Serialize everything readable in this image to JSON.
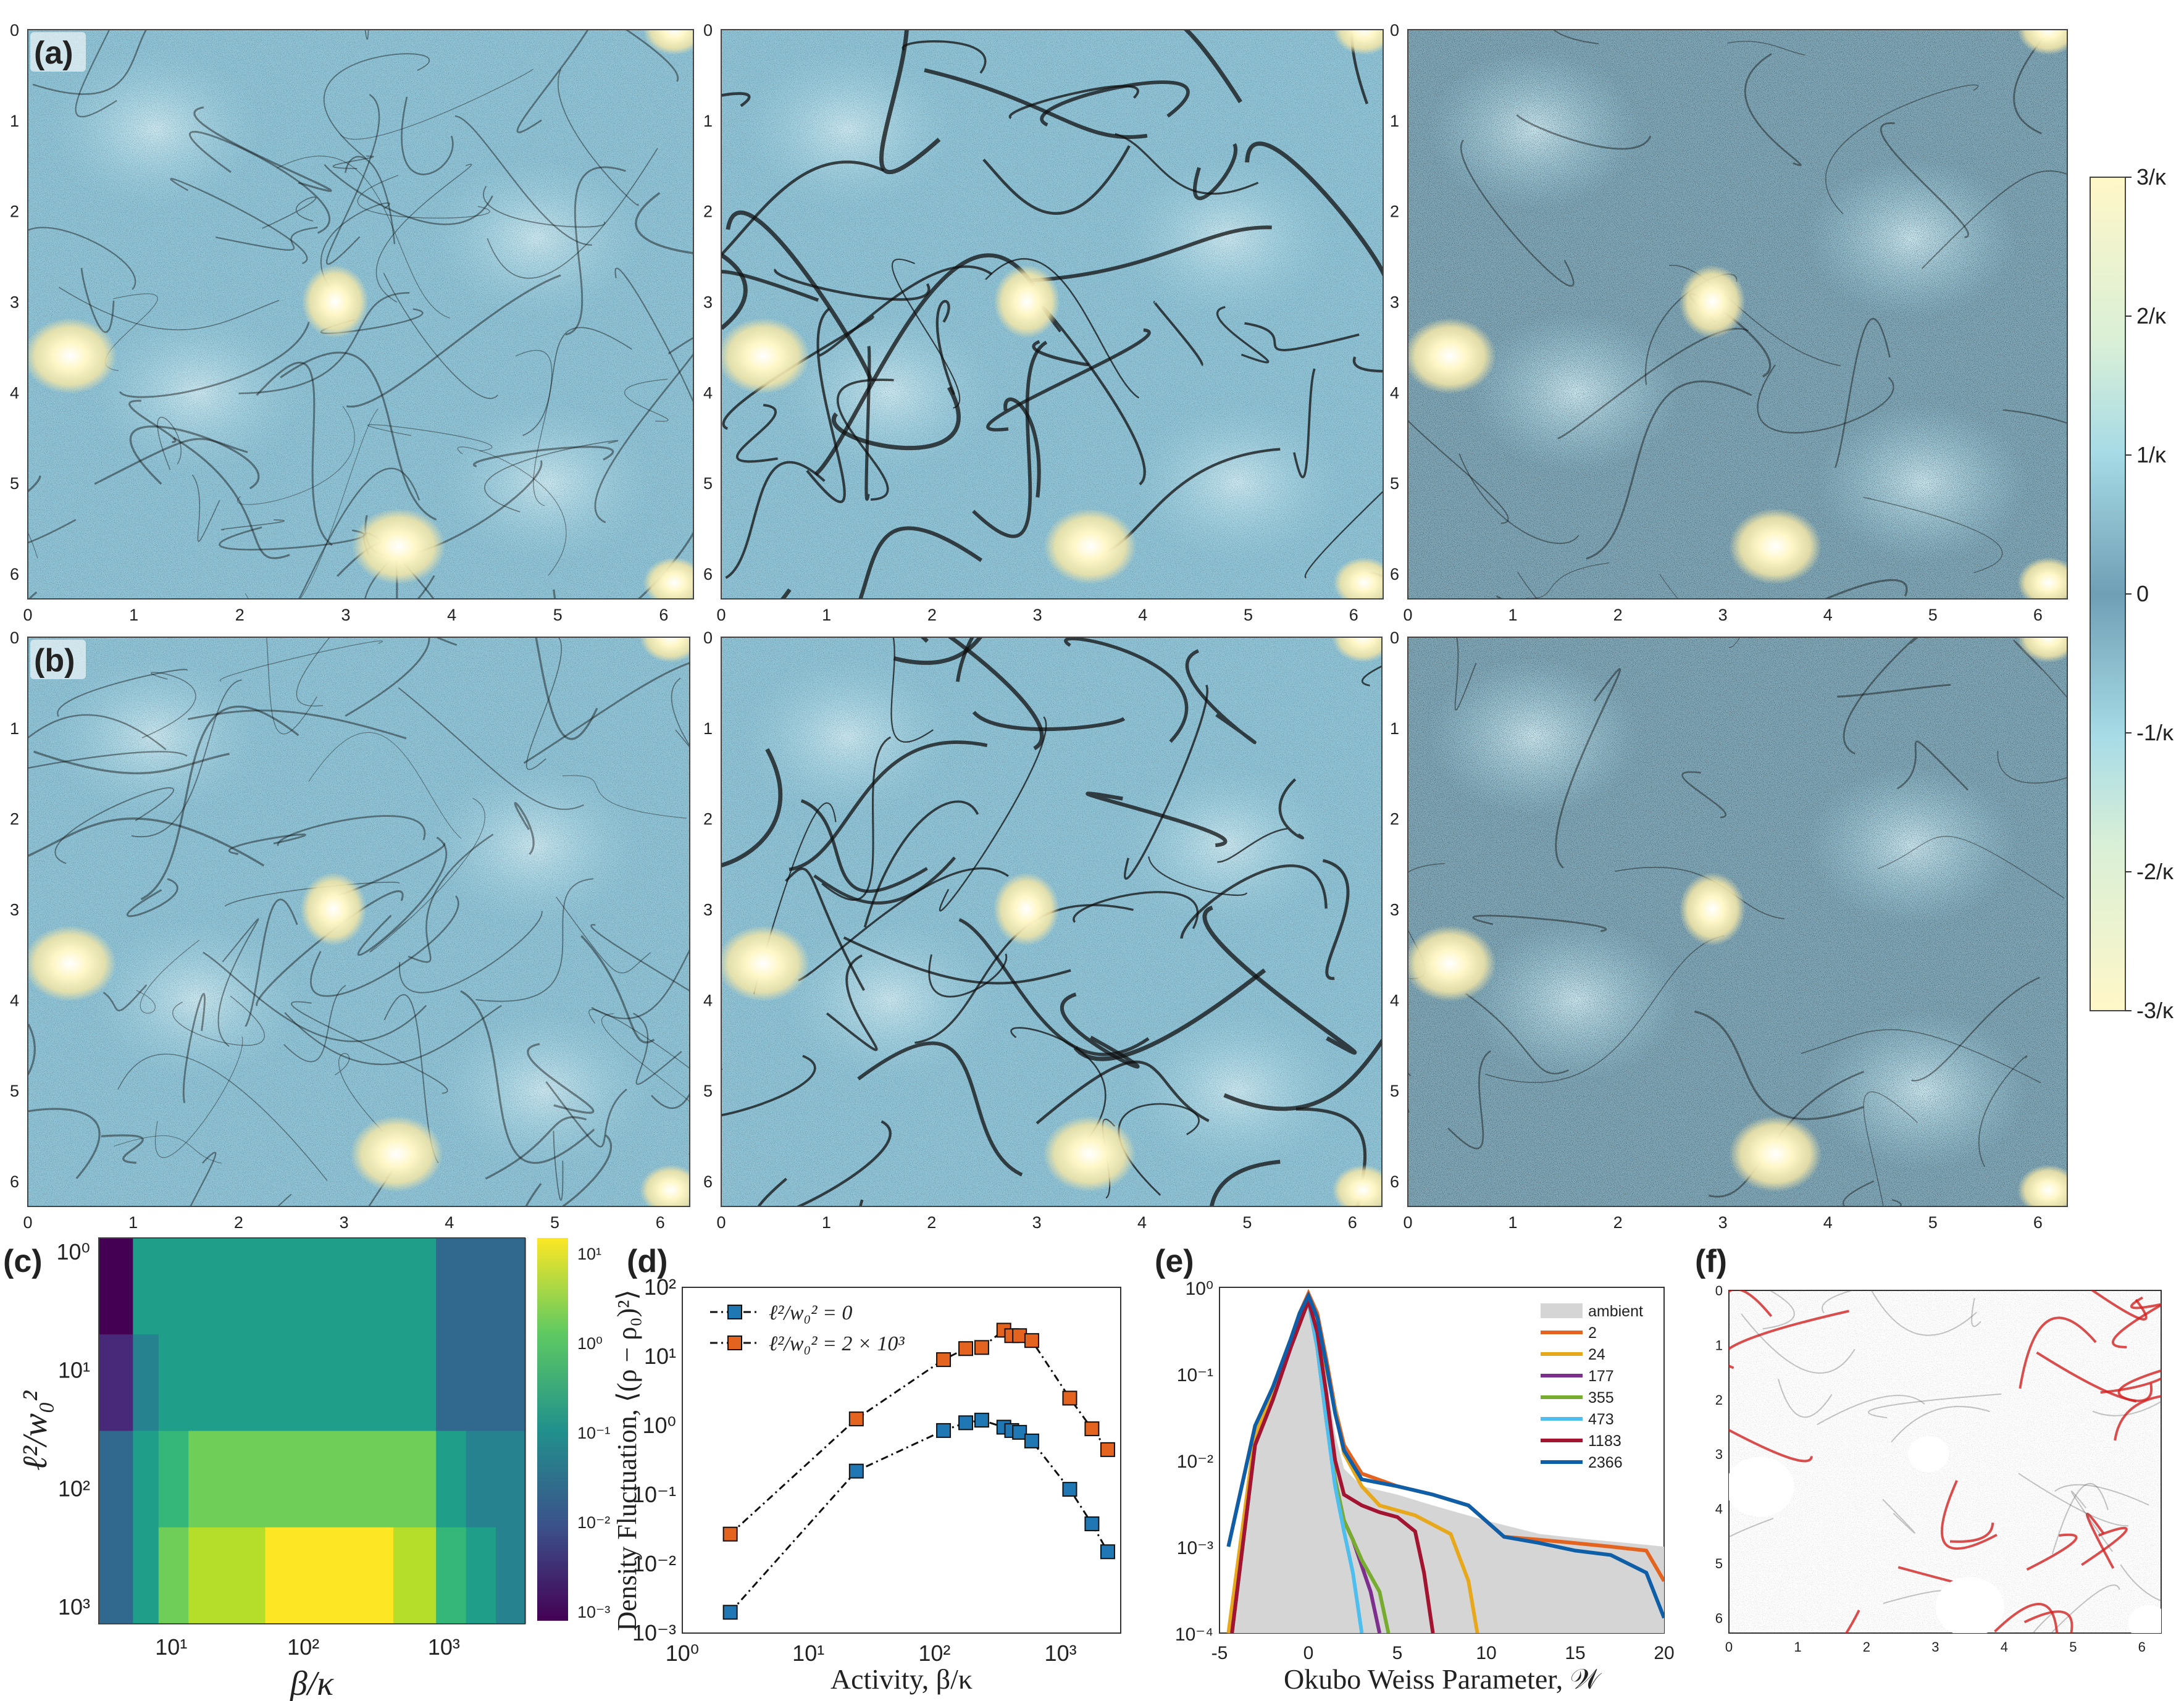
{
  "colors": {
    "field_low": "#5f8fa8",
    "field_mid": "#9fd3e3",
    "field_high": "#fff7c8",
    "particle": "#111111",
    "red_particle": "#d22222",
    "border": "#444444"
  },
  "field_panels": {
    "x_ticks": [
      "0",
      "1",
      "2",
      "3",
      "4",
      "5",
      "6"
    ],
    "y_ticks": [
      "0",
      "1",
      "2",
      "3",
      "4",
      "5",
      "6"
    ],
    "row_labels": [
      "(a)",
      "(b)"
    ]
  },
  "colorbar": {
    "ticks": [
      "3/κ",
      "2/κ",
      "1/κ",
      "0",
      "-1/κ",
      "-2/κ",
      "-3/κ"
    ]
  },
  "panel_c": {
    "label": "(c)",
    "xlabel": "β/κ",
    "ylabel": "ℓ²/w₀²",
    "x_ticks": [
      "10¹",
      "10²",
      "10³"
    ],
    "y_ticks": [
      "10⁰",
      "10¹",
      "10²",
      "10³"
    ],
    "cbar_ticks": [
      "10¹",
      "10⁰",
      "10⁻¹",
      "10⁻²",
      "10⁻³"
    ],
    "chart_data": {
      "type": "heatmap",
      "x_scale": "log",
      "xlim": [
        2,
        2600
      ],
      "y_scale": "log",
      "y_rows": [
        "10⁰",
        "10¹",
        "10²",
        "10³"
      ],
      "columns": 12,
      "values_log10": [
        [
          -3.0,
          -0.8,
          -0.6,
          -0.5,
          -0.5,
          -0.5,
          -0.5,
          -0.5,
          -0.5,
          -1.5,
          -1.6,
          -1.7
        ],
        [
          -2.6,
          -0.9,
          -0.6,
          -0.5,
          -0.5,
          -0.5,
          -0.5,
          -0.5,
          -0.5,
          -1.5,
          -1.6,
          -1.7
        ],
        [
          -1.5,
          -0.7,
          0.0,
          0.2,
          0.3,
          0.4,
          0.4,
          0.3,
          0.3,
          -0.6,
          -0.9,
          -1.3
        ],
        [
          -1.5,
          -0.5,
          0.5,
          0.7,
          0.9,
          1.2,
          1.2,
          1.1,
          1.0,
          0.0,
          -0.4,
          -0.9
        ]
      ],
      "color_range_log10": [
        -3,
        1.3
      ]
    }
  },
  "panel_d": {
    "label": "(d)",
    "xlabel": "Activity, β/κ",
    "ylabel": "Density Fluctuation, ⟨(ρ − ρ₀)²⟩",
    "x_ticks": [
      "10⁰",
      "10¹",
      "10²",
      "10³"
    ],
    "y_ticks": [
      "10²",
      "10¹",
      "10⁰",
      "10⁻¹",
      "10⁻²",
      "10⁻³"
    ],
    "chart_data": {
      "type": "line",
      "x_scale": "log",
      "y_scale": "log",
      "xlim": [
        1,
        3000
      ],
      "ylim": [
        0.001,
        100
      ],
      "series": [
        {
          "name": "ℓ²/w₀² = 0",
          "color": "#1f77b4",
          "x": [
            2.4,
            24,
            118,
            177,
            237,
            355,
            410,
            473,
            591,
            1183,
            1774,
            2366
          ],
          "y": [
            0.002,
            0.22,
            0.85,
            1.1,
            1.2,
            0.95,
            0.85,
            0.8,
            0.6,
            0.12,
            0.038,
            0.015
          ]
        },
        {
          "name": "ℓ²/w₀² = 2 × 10³",
          "color": "#e3631f",
          "x": [
            2.4,
            24,
            118,
            177,
            237,
            355,
            410,
            473,
            591,
            1183,
            1774,
            2366
          ],
          "y": [
            0.027,
            1.25,
            9.0,
            13.0,
            13.5,
            24.0,
            20.0,
            20.0,
            17.0,
            2.5,
            0.9,
            0.45
          ]
        }
      ]
    }
  },
  "panel_e": {
    "label": "(e)",
    "xlabel": "Okubo Weiss Parameter, 𝒲",
    "x_ticks": [
      "-5",
      "0",
      "5",
      "10",
      "15",
      "20"
    ],
    "y_ticks": [
      "10⁰",
      "10⁻¹",
      "10⁻²",
      "10⁻³",
      "10⁻⁴"
    ],
    "chart_data": {
      "type": "line",
      "y_scale": "log",
      "xlim": [
        -5,
        20
      ],
      "ylim": [
        0.0001,
        1
      ],
      "legend_position": "top-right",
      "series": [
        {
          "name": "ambient",
          "color": "#d5d5d5",
          "fill": true,
          "x": [
            -4.5,
            -3,
            -2,
            -1,
            -0.5,
            0,
            0.5,
            1,
            1.5,
            2,
            3,
            5,
            7,
            10,
            13,
            16,
            18,
            20
          ],
          "y": [
            0.0001,
            0.02,
            0.06,
            0.2,
            0.45,
            0.75,
            0.4,
            0.1,
            0.02,
            0.008,
            0.005,
            0.004,
            0.003,
            0.002,
            0.0014,
            0.0012,
            0.0011,
            0.001
          ]
        },
        {
          "name": "2",
          "color": "#e3631f",
          "x": [
            -4.5,
            -3,
            -2,
            -1,
            -0.5,
            0,
            0.5,
            1,
            1.5,
            2,
            3,
            5,
            7,
            9,
            11,
            13,
            15,
            17,
            19,
            20
          ],
          "y": [
            0.001,
            0.025,
            0.07,
            0.25,
            0.5,
            0.85,
            0.5,
            0.15,
            0.04,
            0.015,
            0.007,
            0.005,
            0.004,
            0.003,
            0.0013,
            0.0012,
            0.0011,
            0.001,
            0.0009,
            0.0004
          ]
        },
        {
          "name": "24",
          "color": "#e8a81c",
          "x": [
            -4.5,
            -3,
            -2,
            -1,
            0,
            1,
            2,
            3,
            4,
            6,
            8,
            9,
            9.5
          ],
          "y": [
            0.0001,
            0.02,
            0.06,
            0.2,
            0.75,
            0.12,
            0.012,
            0.005,
            0.003,
            0.0023,
            0.0014,
            0.0004,
            0.0001
          ]
        },
        {
          "name": "177",
          "color": "#7e2f8e",
          "x": [
            -4.3,
            -3,
            -2,
            -1,
            0,
            0.5,
            1,
            1.5,
            2,
            2.5,
            3,
            3.5,
            4
          ],
          "y": [
            0.0001,
            0.015,
            0.05,
            0.2,
            0.7,
            0.2,
            0.03,
            0.006,
            0.002,
            0.0012,
            0.0006,
            0.0003,
            0.0001
          ]
        },
        {
          "name": "355",
          "color": "#77ac30",
          "x": [
            -4.3,
            -3,
            -2,
            -1,
            0,
            0.5,
            1,
            1.5,
            2,
            2.5,
            3,
            4,
            4.5
          ],
          "y": [
            0.0001,
            0.015,
            0.05,
            0.2,
            0.7,
            0.2,
            0.03,
            0.006,
            0.002,
            0.0012,
            0.0007,
            0.0003,
            0.0001
          ]
        },
        {
          "name": "473",
          "color": "#4dbeee",
          "x": [
            -4.3,
            -3,
            -2,
            -1,
            0,
            0.5,
            1,
            1.5,
            2,
            2.5,
            3
          ],
          "y": [
            0.0001,
            0.015,
            0.05,
            0.2,
            0.7,
            0.2,
            0.03,
            0.005,
            0.0015,
            0.0005,
            0.0001
          ]
        },
        {
          "name": "1183",
          "color": "#a2142f",
          "x": [
            -4.3,
            -3,
            -2,
            -1,
            0,
            0.5,
            1,
            1.5,
            2,
            3,
            4,
            5,
            6,
            6.5,
            7
          ],
          "y": [
            0.0001,
            0.015,
            0.05,
            0.2,
            0.7,
            0.3,
            0.06,
            0.01,
            0.004,
            0.003,
            0.0025,
            0.0022,
            0.0015,
            0.0005,
            0.0001
          ]
        },
        {
          "name": "2366",
          "color": "#0f5ea8",
          "x": [
            -4.5,
            -3,
            -2,
            -1,
            -0.5,
            0,
            0.5,
            1,
            1.5,
            2,
            3,
            5,
            7,
            9,
            11,
            13,
            15,
            17,
            19,
            20
          ],
          "y": [
            0.001,
            0.025,
            0.07,
            0.25,
            0.5,
            0.8,
            0.45,
            0.13,
            0.035,
            0.013,
            0.006,
            0.005,
            0.004,
            0.003,
            0.0013,
            0.0011,
            0.0009,
            0.0008,
            0.0005,
            0.00015
          ]
        }
      ]
    }
  },
  "panel_f": {
    "label": "(f)",
    "x_ticks": [
      "0",
      "1",
      "2",
      "3",
      "4",
      "5",
      "6"
    ],
    "y_ticks": [
      "0",
      "1",
      "2",
      "3",
      "4",
      "5",
      "6"
    ]
  }
}
